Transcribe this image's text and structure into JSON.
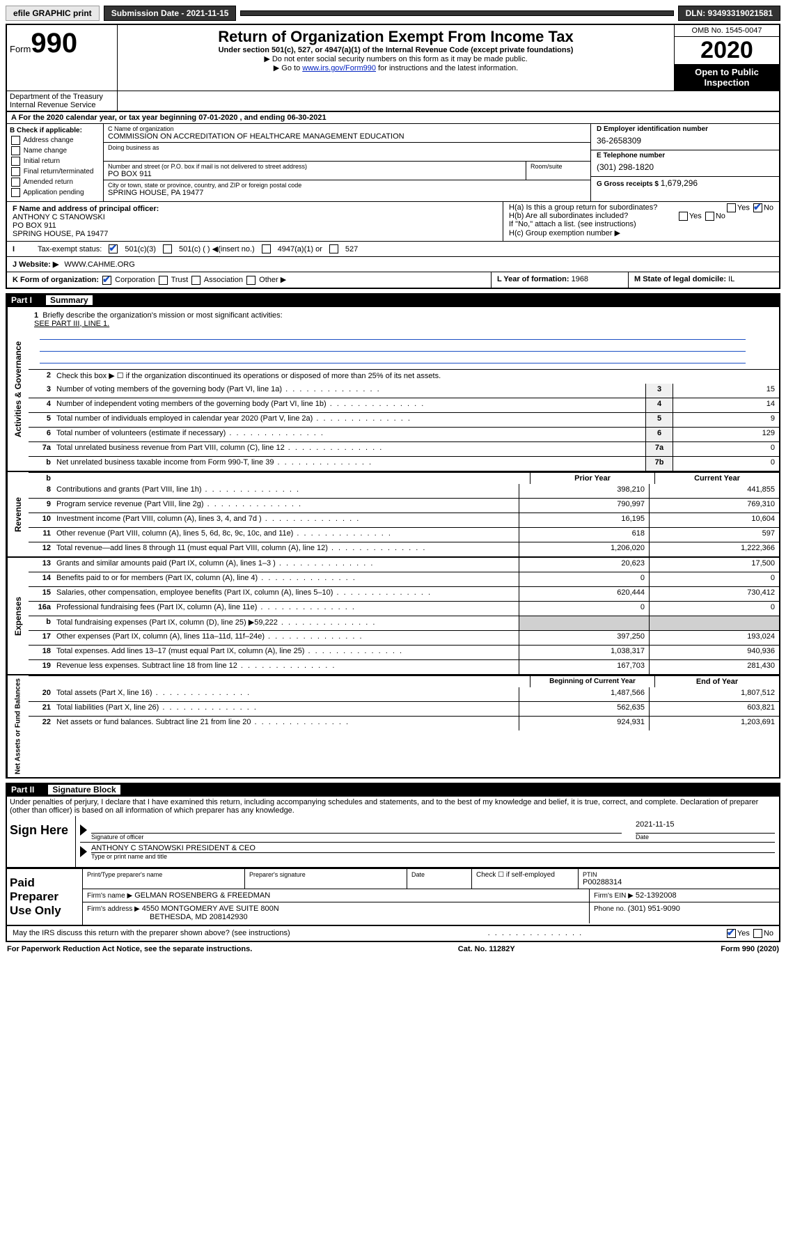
{
  "top_bar": {
    "efile_label": "efile GRAPHIC print",
    "submission_label": "Submission Date - 2021-11-15",
    "dln": "DLN: 93493319021581"
  },
  "header": {
    "form_prefix": "Form",
    "form_number": "990",
    "title": "Return of Organization Exempt From Income Tax",
    "subtitle": "Under section 501(c), 527, or 4947(a)(1) of the Internal Revenue Code (except private foundations)",
    "note1": "▶ Do not enter social security numbers on this form as it may be made public.",
    "note2_pre": "▶ Go to ",
    "note2_link": "www.irs.gov/Form990",
    "note2_post": " for instructions and the latest information.",
    "omb": "OMB No. 1545-0047",
    "year": "2020",
    "open_public": "Open to Public Inspection",
    "dept": "Department of the Treasury",
    "irs": "Internal Revenue Service"
  },
  "line_a": "A For the 2020 calendar year, or tax year beginning 07-01-2020    , and ending 06-30-2021",
  "col_b": {
    "header": "B Check if applicable:",
    "opts": [
      "Address change",
      "Name change",
      "Initial return",
      "Final return/terminated",
      "Amended return",
      "Application pending"
    ]
  },
  "col_c": {
    "name_label": "C Name of organization",
    "name": "COMMISSION ON ACCREDITATION OF HEALTHCARE MANAGEMENT EDUCATION",
    "dba_label": "Doing business as",
    "addr_label": "Number and street (or P.O. box if mail is not delivered to street address)",
    "room_label": "Room/suite",
    "addr": "PO BOX 911",
    "city_label": "City or town, state or province, country, and ZIP or foreign postal code",
    "city": "SPRING HOUSE, PA  19477"
  },
  "col_d": {
    "ein_label": "D Employer identification number",
    "ein": "36-2658309",
    "phone_label": "E Telephone number",
    "phone": "(301) 298-1820",
    "gross_label": "G Gross receipts $",
    "gross": "1,679,296"
  },
  "section_f": {
    "label": "F Name and address of principal officer:",
    "name": "ANTHONY C STANOWSKI",
    "addr1": "PO BOX 911",
    "addr2": "SPRING HOUSE, PA  19477"
  },
  "section_h": {
    "ha": "H(a)  Is this a group return for subordinates?",
    "hb": "H(b)  Are all subordinates included?",
    "hb_note": "If \"No,\" attach a list. (see instructions)",
    "hc": "H(c)  Group exemption number ▶"
  },
  "tax_exempt": {
    "label": "Tax-exempt status:",
    "opt1": "501(c)(3)",
    "opt2": "501(c) (  ) ◀(insert no.)",
    "opt3": "4947(a)(1) or",
    "opt4": "527"
  },
  "website": {
    "label": "J   Website: ▶",
    "val": "WWW.CAHME.ORG"
  },
  "line_k": {
    "label": "K Form of organization:",
    "opts": [
      "Corporation",
      "Trust",
      "Association",
      "Other ▶"
    ]
  },
  "line_l": {
    "label": "L Year of formation:",
    "val": "1968"
  },
  "line_m": {
    "label": "M State of legal domicile:",
    "val": "IL"
  },
  "part1": {
    "num": "Part I",
    "title": "Summary",
    "q1": "Briefly describe the organization's mission or most significant activities:",
    "q1_val": "SEE PART III, LINE 1.",
    "q2": "Check this box ▶ ☐  if the organization discontinued its operations or disposed of more than 25% of its net assets.",
    "rows_single": [
      {
        "n": "3",
        "desc": "Number of voting members of the governing body (Part VI, line 1a)",
        "box": "3",
        "val": "15"
      },
      {
        "n": "4",
        "desc": "Number of independent voting members of the governing body (Part VI, line 1b)",
        "box": "4",
        "val": "14"
      },
      {
        "n": "5",
        "desc": "Total number of individuals employed in calendar year 2020 (Part V, line 2a)",
        "box": "5",
        "val": "9"
      },
      {
        "n": "6",
        "desc": "Total number of volunteers (estimate if necessary)",
        "box": "6",
        "val": "129"
      },
      {
        "n": "7a",
        "desc": "Total unrelated business revenue from Part VIII, column (C), line 12",
        "box": "7a",
        "val": "0"
      },
      {
        "n": "b",
        "desc": "Net unrelated business taxable income from Form 990-T, line 39",
        "box": "7b",
        "val": "0"
      }
    ],
    "col_headers": {
      "prior": "Prior Year",
      "current": "Current Year"
    },
    "revenue_label": "Revenue",
    "revenue_rows": [
      {
        "n": "8",
        "desc": "Contributions and grants (Part VIII, line 1h)",
        "prior": "398,210",
        "current": "441,855"
      },
      {
        "n": "9",
        "desc": "Program service revenue (Part VIII, line 2g)",
        "prior": "790,997",
        "current": "769,310"
      },
      {
        "n": "10",
        "desc": "Investment income (Part VIII, column (A), lines 3, 4, and 7d )",
        "prior": "16,195",
        "current": "10,604"
      },
      {
        "n": "11",
        "desc": "Other revenue (Part VIII, column (A), lines 5, 6d, 8c, 9c, 10c, and 11e)",
        "prior": "618",
        "current": "597"
      },
      {
        "n": "12",
        "desc": "Total revenue—add lines 8 through 11 (must equal Part VIII, column (A), line 12)",
        "prior": "1,206,020",
        "current": "1,222,366"
      }
    ],
    "expenses_label": "Expenses",
    "expenses_rows": [
      {
        "n": "13",
        "desc": "Grants and similar amounts paid (Part IX, column (A), lines 1–3 )",
        "prior": "20,623",
        "current": "17,500"
      },
      {
        "n": "14",
        "desc": "Benefits paid to or for members (Part IX, column (A), line 4)",
        "prior": "0",
        "current": "0"
      },
      {
        "n": "15",
        "desc": "Salaries, other compensation, employee benefits (Part IX, column (A), lines 5–10)",
        "prior": "620,444",
        "current": "730,412"
      },
      {
        "n": "16a",
        "desc": "Professional fundraising fees (Part IX, column (A), line 11e)",
        "prior": "0",
        "current": "0"
      },
      {
        "n": "b",
        "desc": "Total fundraising expenses (Part IX, column (D), line 25) ▶59,222",
        "prior": "GREY",
        "current": "GREY"
      },
      {
        "n": "17",
        "desc": "Other expenses (Part IX, column (A), lines 11a–11d, 11f–24e)",
        "prior": "397,250",
        "current": "193,024"
      },
      {
        "n": "18",
        "desc": "Total expenses. Add lines 13–17 (must equal Part IX, column (A), line 25)",
        "prior": "1,038,317",
        "current": "940,936"
      },
      {
        "n": "19",
        "desc": "Revenue less expenses. Subtract line 18 from line 12",
        "prior": "167,703",
        "current": "281,430"
      }
    ],
    "netassets_label": "Net Assets or Fund Balances",
    "net_headers": {
      "prior": "Beginning of Current Year",
      "current": "End of Year"
    },
    "net_rows": [
      {
        "n": "20",
        "desc": "Total assets (Part X, line 16)",
        "prior": "1,487,566",
        "current": "1,807,512"
      },
      {
        "n": "21",
        "desc": "Total liabilities (Part X, line 26)",
        "prior": "562,635",
        "current": "603,821"
      },
      {
        "n": "22",
        "desc": "Net assets or fund balances. Subtract line 21 from line 20",
        "prior": "924,931",
        "current": "1,203,691"
      }
    ],
    "gov_label": "Activities & Governance"
  },
  "part2": {
    "num": "Part II",
    "title": "Signature Block",
    "perjury": "Under penalties of perjury, I declare that I have examined this return, including accompanying schedules and statements, and to the best of my knowledge and belief, it is true, correct, and complete. Declaration of preparer (other than officer) is based on all information of which preparer has any knowledge.",
    "sign_here": "Sign Here",
    "sig_officer": "Signature of officer",
    "sig_date_label": "Date",
    "sig_date": "2021-11-15",
    "sig_name": "ANTHONY C STANOWSKI  PRESIDENT & CEO",
    "sig_type": "Type or print name and title",
    "paid_label": "Paid Preparer Use Only",
    "prep_name_label": "Print/Type preparer's name",
    "prep_sig_label": "Preparer's signature",
    "date_label": "Date",
    "check_self": "Check ☐ if self-employed",
    "ptin_label": "PTIN",
    "ptin": "P00288314",
    "firm_name_label": "Firm's name    ▶",
    "firm_name": "GELMAN ROSENBERG & FREEDMAN",
    "firm_ein_label": "Firm's EIN ▶",
    "firm_ein": "52-1392008",
    "firm_addr_label": "Firm's address ▶",
    "firm_addr1": "4550 MONTGOMERY AVE SUITE 800N",
    "firm_addr2": "BETHESDA, MD  208142930",
    "firm_phone_label": "Phone no.",
    "firm_phone": "(301) 951-9090",
    "discuss": "May the IRS discuss this return with the preparer shown above? (see instructions)"
  },
  "footer": {
    "left": "For Paperwork Reduction Act Notice, see the separate instructions.",
    "mid": "Cat. No. 11282Y",
    "right": "Form 990 (2020)"
  }
}
